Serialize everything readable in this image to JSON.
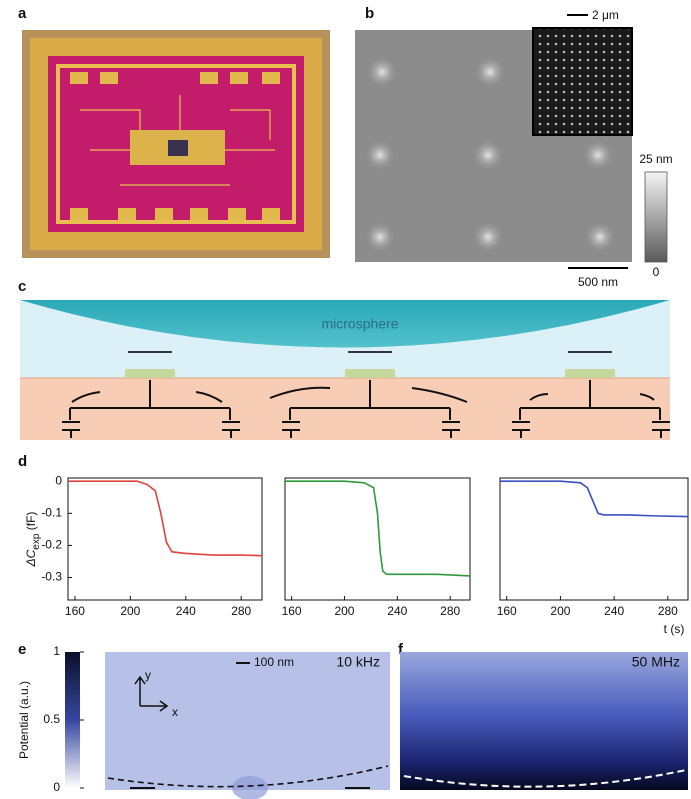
{
  "panels": [
    "a",
    "b",
    "c",
    "d",
    "e",
    "f"
  ],
  "b": {
    "inset_scale": "2 μm",
    "scale_bar": "500 nm",
    "colorbar_max": "25 nm",
    "colorbar_min": "0"
  },
  "c": {
    "label": "microsphere"
  },
  "e": {
    "colorbar": {
      "label": "Potential (a.u.)",
      "lim": [
        0,
        1
      ],
      "ticks": [
        0,
        0.5,
        1
      ]
    },
    "scale_bar": "100 nm",
    "frequency": "10 kHz",
    "axis_y": "y",
    "axis_x": "x"
  },
  "f": {
    "frequency": "50 MHz"
  },
  "chart_data": [
    {
      "type": "line",
      "ylabel": {
        "symbol": "ΔC",
        "subscript": "exp",
        "unit": " (fF)"
      },
      "x": [
        155,
        170,
        190,
        205,
        212,
        218,
        222,
        226,
        230,
        240,
        260,
        280,
        295
      ],
      "series": [
        {
          "color": "#e0443a",
          "values": [
            0,
            0,
            0,
            0,
            -0.01,
            -0.03,
            -0.1,
            -0.19,
            -0.22,
            -0.225,
            -0.23,
            -0.23,
            -0.232
          ]
        }
      ],
      "xlim": [
        155,
        295
      ],
      "ylim": [
        -0.37,
        0.01
      ],
      "xticks": [
        160,
        200,
        240,
        280
      ],
      "yticks": [
        0,
        -0.1,
        -0.2,
        -0.3
      ]
    },
    {
      "type": "line",
      "x": [
        155,
        180,
        200,
        215,
        222,
        225,
        227,
        229,
        232,
        250,
        270,
        295
      ],
      "series": [
        {
          "color": "#2f9a3a",
          "values": [
            0,
            0,
            0,
            -0.005,
            -0.02,
            -0.1,
            -0.22,
            -0.28,
            -0.29,
            -0.29,
            -0.29,
            -0.295
          ]
        }
      ],
      "xlim": [
        155,
        295
      ],
      "ylim": [
        -0.37,
        0.01
      ],
      "xticks": [
        160,
        200,
        240,
        280
      ]
    },
    {
      "type": "line",
      "xlabel": "t (s)",
      "x": [
        155,
        180,
        200,
        215,
        220,
        224,
        228,
        232,
        250,
        270,
        295
      ],
      "series": [
        {
          "color": "#3a4fc0",
          "values": [
            0,
            0,
            0,
            -0.005,
            -0.02,
            -0.06,
            -0.1,
            -0.105,
            -0.105,
            -0.108,
            -0.11
          ]
        }
      ],
      "xlim": [
        155,
        295
      ],
      "ylim": [
        -0.37,
        0.01
      ],
      "xticks": [
        160,
        200,
        240,
        280
      ]
    }
  ]
}
